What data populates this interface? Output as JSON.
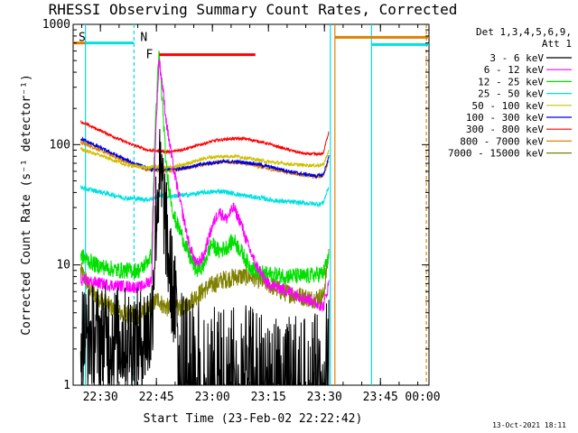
{
  "chart_data": {
    "type": "line",
    "title": "RHESSI Observing Summary Count Rates, Corrected",
    "xlabel": "Start Time (23-Feb-02 22:22:42)",
    "ylabel": "Corrected Count Rate (s⁻¹ detector⁻¹)",
    "y_scale": "log",
    "ylim": [
      1,
      1000
    ],
    "y_ticks": [
      1,
      10,
      100,
      1000
    ],
    "y_tick_labels": [
      "1",
      "10",
      "100",
      "1000"
    ],
    "xlim_minutes": [
      0,
      95.3
    ],
    "x_ticks_minutes": [
      7.3,
      22.3,
      37.3,
      52.3,
      67.3,
      82.3,
      97.3
    ],
    "x_tick_labels": [
      "22:30",
      "22:45",
      "23:00",
      "23:15",
      "23:30",
      "23:45",
      "00:00"
    ],
    "legend": {
      "header": "Det 1,3,4,5,6,9,",
      "att": "Att 1",
      "placement": "right"
    },
    "footer_date": "13-Oct-2021 18:11",
    "markers": [
      {
        "label": "S",
        "color": "#e08000",
        "x0": 0,
        "x1": 3.3,
        "y": 700
      },
      {
        "label": "N",
        "color": "#00e0e0",
        "x0": 3.3,
        "x1": 16.3,
        "y": 700
      },
      {
        "label": "F",
        "color": "#ff0000",
        "x0": 23.1,
        "x1": 48.8,
        "y": 560
      }
    ],
    "vlines": [
      {
        "color": "#00e0e0",
        "x": 3.3,
        "dashed": false
      },
      {
        "color": "#00e0e0",
        "x": 16.3,
        "dashed": true
      },
      {
        "color": "#00e0e0",
        "x": 68.9,
        "dashed": false
      },
      {
        "color": "#e08000",
        "x": 70.1,
        "dashed": false
      },
      {
        "color": "#00e0e0",
        "x": 79.9,
        "dashed": false
      },
      {
        "color": "#e08000",
        "x": 94.6,
        "dashed": true
      }
    ],
    "attenuator_bars": [
      {
        "color": "#e08000",
        "x0": 70.1,
        "x1": 95.3,
        "y": 780
      },
      {
        "color": "#00e0e0",
        "x0": 79.9,
        "x1": 95.3,
        "y": 680
      }
    ],
    "series": [
      {
        "name": "3 - 6 keV",
        "color": "#000000",
        "noise": 0.45,
        "points": [
          [
            2,
            2.6
          ],
          [
            8,
            2.5
          ],
          [
            14,
            2.4
          ],
          [
            18,
            2.3
          ],
          [
            21,
            3
          ],
          [
            22,
            20
          ],
          [
            23,
            55
          ],
          [
            24,
            40
          ],
          [
            25.5,
            12
          ],
          [
            27,
            5
          ],
          [
            29,
            2.5
          ],
          [
            32,
            2
          ],
          [
            40,
            1.8
          ],
          [
            48,
            1.6
          ],
          [
            55,
            1.4
          ],
          [
            62,
            1.3
          ],
          [
            67,
            1.5
          ],
          [
            68.5,
            3
          ]
        ]
      },
      {
        "name": "6 - 12 keV",
        "color": "#ff00ff",
        "noise": 0.05,
        "points": [
          [
            2,
            7.5
          ],
          [
            10,
            6.8
          ],
          [
            18,
            6.5
          ],
          [
            21,
            7.5
          ],
          [
            22,
            100
          ],
          [
            23,
            520
          ],
          [
            24,
            300
          ],
          [
            25,
            150
          ],
          [
            27,
            60
          ],
          [
            29,
            30
          ],
          [
            31,
            15
          ],
          [
            33,
            10
          ],
          [
            35,
            12
          ],
          [
            37,
            20
          ],
          [
            39,
            28
          ],
          [
            41,
            24
          ],
          [
            43,
            30
          ],
          [
            45,
            22
          ],
          [
            47,
            14
          ],
          [
            49,
            10
          ],
          [
            52,
            7
          ],
          [
            58,
            6
          ],
          [
            64,
            5
          ],
          [
            67,
            4.5
          ],
          [
            68.5,
            7
          ]
        ]
      },
      {
        "name": "12 - 25 keV",
        "color": "#00e000",
        "noise": 0.07,
        "points": [
          [
            2,
            12
          ],
          [
            6,
            10
          ],
          [
            12,
            9
          ],
          [
            18,
            9
          ],
          [
            21,
            12
          ],
          [
            22,
            150
          ],
          [
            23,
            580
          ],
          [
            24,
            200
          ],
          [
            25,
            60
          ],
          [
            27,
            25
          ],
          [
            29,
            18
          ],
          [
            31,
            12
          ],
          [
            33,
            9
          ],
          [
            35,
            10
          ],
          [
            37,
            15
          ],
          [
            39,
            13
          ],
          [
            41,
            14
          ],
          [
            43,
            16
          ],
          [
            45,
            13
          ],
          [
            47,
            10
          ],
          [
            50,
            8.5
          ],
          [
            55,
            8.2
          ],
          [
            62,
            8
          ],
          [
            67,
            8.5
          ],
          [
            68.5,
            12
          ]
        ]
      },
      {
        "name": "25 - 50 keV",
        "color": "#00e0e0",
        "noise": 0.02,
        "points": [
          [
            2,
            44
          ],
          [
            8,
            40
          ],
          [
            14,
            36
          ],
          [
            20,
            35
          ],
          [
            22,
            36
          ],
          [
            23,
            38
          ],
          [
            25,
            37
          ],
          [
            30,
            38
          ],
          [
            35,
            40
          ],
          [
            40,
            41
          ],
          [
            45,
            38
          ],
          [
            50,
            36
          ],
          [
            55,
            34
          ],
          [
            60,
            33
          ],
          [
            66,
            32
          ],
          [
            67,
            33
          ],
          [
            68.5,
            45
          ]
        ]
      },
      {
        "name": "50 - 100 keV",
        "color": "#d0c000",
        "noise": 0.015,
        "points": [
          [
            2,
            92
          ],
          [
            8,
            80
          ],
          [
            14,
            68
          ],
          [
            20,
            64
          ],
          [
            22,
            66
          ],
          [
            24,
            64
          ],
          [
            28,
            66
          ],
          [
            32,
            72
          ],
          [
            36,
            78
          ],
          [
            40,
            80
          ],
          [
            44,
            80
          ],
          [
            48,
            76
          ],
          [
            52,
            72
          ],
          [
            56,
            70
          ],
          [
            60,
            68
          ],
          [
            65,
            67
          ],
          [
            67,
            68
          ],
          [
            68.5,
            90
          ]
        ]
      },
      {
        "name": "100 - 300 keV",
        "color": "#0000e0",
        "noise": 0.015,
        "points": [
          [
            2,
            112
          ],
          [
            8,
            92
          ],
          [
            14,
            75
          ],
          [
            20,
            63
          ],
          [
            24,
            62
          ],
          [
            28,
            63
          ],
          [
            32,
            66
          ],
          [
            36,
            70
          ],
          [
            40,
            72
          ],
          [
            44,
            72
          ],
          [
            48,
            70
          ],
          [
            52,
            66
          ],
          [
            56,
            62
          ],
          [
            60,
            58
          ],
          [
            65,
            55
          ],
          [
            67,
            56
          ],
          [
            68.5,
            80
          ]
        ]
      },
      {
        "name": "300 - 800 keV",
        "color": "#ff0000",
        "noise": 0.012,
        "points": [
          [
            2,
            155
          ],
          [
            8,
            128
          ],
          [
            14,
            105
          ],
          [
            20,
            90
          ],
          [
            26,
            87
          ],
          [
            30,
            92
          ],
          [
            34,
            100
          ],
          [
            38,
            108
          ],
          [
            42,
            112
          ],
          [
            46,
            112
          ],
          [
            50,
            106
          ],
          [
            54,
            98
          ],
          [
            58,
            90
          ],
          [
            62,
            84
          ],
          [
            66,
            83
          ],
          [
            67,
            85
          ],
          [
            68.5,
            130
          ]
        ]
      },
      {
        "name": "800 - 7000 keV",
        "color": "#e08000",
        "noise": 0.015,
        "points": [
          [
            2,
            105
          ],
          [
            8,
            88
          ],
          [
            14,
            72
          ],
          [
            20,
            62
          ],
          [
            24,
            60
          ],
          [
            28,
            62
          ],
          [
            32,
            65
          ],
          [
            36,
            70
          ],
          [
            40,
            72
          ],
          [
            44,
            71
          ],
          [
            48,
            68
          ],
          [
            52,
            63
          ],
          [
            56,
            60
          ],
          [
            60,
            57
          ],
          [
            65,
            54
          ],
          [
            67,
            55
          ],
          [
            68.5,
            75
          ]
        ]
      },
      {
        "name": "7000 - 15000 keV",
        "color": "#808000",
        "noise": 0.08,
        "points": [
          [
            2,
            9
          ],
          [
            5,
            6
          ],
          [
            8,
            5
          ],
          [
            12,
            4
          ],
          [
            18,
            3.8
          ],
          [
            21,
            4.5
          ],
          [
            22,
            5
          ],
          [
            23,
            5.2
          ],
          [
            24,
            4.6
          ],
          [
            27,
            4.2
          ],
          [
            30,
            4.6
          ],
          [
            33,
            5.5
          ],
          [
            36,
            6.5
          ],
          [
            40,
            7.5
          ],
          [
            44,
            8
          ],
          [
            48,
            8
          ],
          [
            52,
            7
          ],
          [
            56,
            6
          ],
          [
            60,
            5.6
          ],
          [
            64,
            5.2
          ],
          [
            67,
            5.5
          ],
          [
            68.5,
            13
          ]
        ]
      }
    ]
  }
}
